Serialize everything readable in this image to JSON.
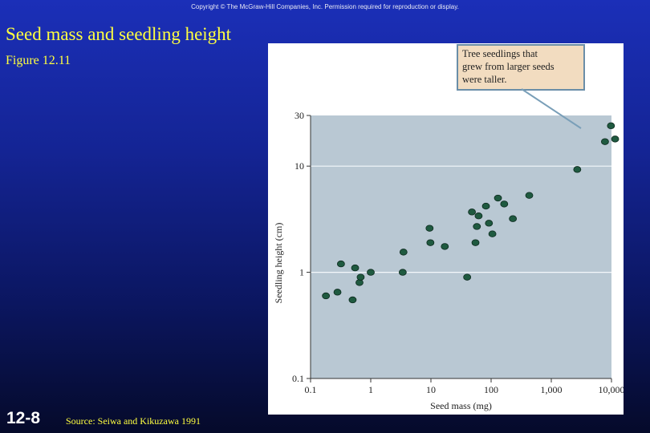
{
  "slide": {
    "copyright": "Copyright © The McGraw-Hill Companies, Inc. Permission required for reproduction or display.",
    "title": "Seed mass and seedling height",
    "subtitle": "Figure 12.11",
    "slide_number": "12-8",
    "source": "Source: Seiwa and Kikuzawa 1991"
  },
  "colors": {
    "plot_background": "#b9c8d3",
    "point_fill": "#1f5a40",
    "point_stroke": "#0d2a1e",
    "callout_background": "#f2dcc0",
    "callout_border": "#6a8ea8"
  },
  "chart_data": {
    "type": "scatter",
    "xlabel": "Seed mass (mg)",
    "ylabel": "Seedling height (cm)",
    "xscale": "log",
    "yscale": "log",
    "xlim": [
      0.1,
      10000
    ],
    "ylim": [
      0.1,
      30
    ],
    "xticks": [
      {
        "value": 0.1,
        "label": "0.1"
      },
      {
        "value": 1,
        "label": "1"
      },
      {
        "value": 10,
        "label": "10"
      },
      {
        "value": 100,
        "label": "100"
      },
      {
        "value": 1000,
        "label": "1,000"
      },
      {
        "value": 10000,
        "label": "10,000"
      }
    ],
    "yticks": [
      {
        "value": 0.1,
        "label": "0.1"
      },
      {
        "value": 1,
        "label": "1"
      },
      {
        "value": 10,
        "label": "10"
      },
      {
        "value": 30,
        "label": "30"
      }
    ],
    "grid": "horizontal lines at 1 and 10",
    "annotation": "Tree seedlings that grew from larger seeds were taller.",
    "points": [
      {
        "x": 0.18,
        "y": 0.6
      },
      {
        "x": 0.28,
        "y": 0.65
      },
      {
        "x": 0.32,
        "y": 1.2
      },
      {
        "x": 0.5,
        "y": 0.55
      },
      {
        "x": 0.55,
        "y": 1.1
      },
      {
        "x": 0.65,
        "y": 0.8
      },
      {
        "x": 0.68,
        "y": 0.9
      },
      {
        "x": 1.0,
        "y": 1.0
      },
      {
        "x": 3.4,
        "y": 1.0
      },
      {
        "x": 3.5,
        "y": 1.55
      },
      {
        "x": 9.5,
        "y": 2.6
      },
      {
        "x": 9.8,
        "y": 1.9
      },
      {
        "x": 17,
        "y": 1.75
      },
      {
        "x": 40,
        "y": 0.9
      },
      {
        "x": 48,
        "y": 3.7
      },
      {
        "x": 55,
        "y": 1.9
      },
      {
        "x": 58,
        "y": 2.7
      },
      {
        "x": 62,
        "y": 3.4
      },
      {
        "x": 82,
        "y": 4.2
      },
      {
        "x": 92,
        "y": 2.9
      },
      {
        "x": 105,
        "y": 2.3
      },
      {
        "x": 130,
        "y": 5.0
      },
      {
        "x": 165,
        "y": 4.4
      },
      {
        "x": 230,
        "y": 3.2
      },
      {
        "x": 430,
        "y": 5.3
      },
      {
        "x": 2700,
        "y": 9.3
      },
      {
        "x": 7800,
        "y": 17
      },
      {
        "x": 9800,
        "y": 24
      },
      {
        "x": 11500,
        "y": 18
      }
    ]
  }
}
